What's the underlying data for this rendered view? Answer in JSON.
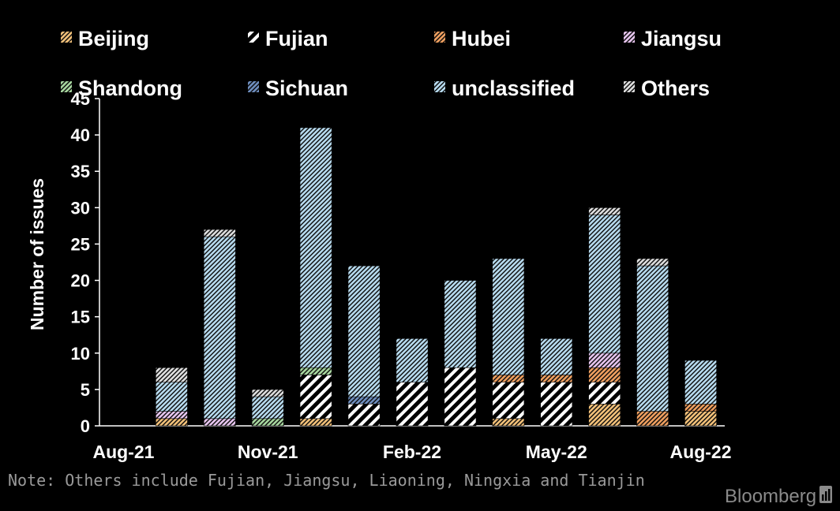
{
  "chart_data": {
    "type": "bar",
    "stacked": true,
    "categories": [
      "Aug-21",
      "Sep-21",
      "Oct-21",
      "Nov-21",
      "Dec-21",
      "Jan-22",
      "Feb-22",
      "Mar-22",
      "Apr-22",
      "May-22",
      "Jun-22",
      "Jul-22",
      "Aug-22"
    ],
    "x_tick_labels": [
      {
        "label": "Aug-21",
        "index": 0
      },
      {
        "label": "Nov-21",
        "index": 3
      },
      {
        "label": "Feb-22",
        "index": 6
      },
      {
        "label": "May-22",
        "index": 9
      },
      {
        "label": "Aug-22",
        "index": 12
      }
    ],
    "series": [
      {
        "name": "Beijing",
        "color": "#f4c27a",
        "pattern": "hatch-right",
        "values": [
          0,
          1,
          0,
          0,
          1,
          0,
          0,
          0,
          1,
          0,
          3,
          0,
          2
        ]
      },
      {
        "name": "Fujian",
        "color": "#ffffff",
        "pattern": "hatch-dense",
        "values": [
          0,
          0,
          0,
          0,
          6,
          3,
          6,
          8,
          5,
          6,
          3,
          0,
          0
        ]
      },
      {
        "name": "Hubei",
        "color": "#f0a060",
        "pattern": "hatch-right",
        "values": [
          0,
          0,
          0,
          0,
          0,
          0,
          0,
          0,
          1,
          1,
          2,
          2,
          1
        ]
      },
      {
        "name": "Jiangsu",
        "color": "#e8c6f0",
        "pattern": "hatch-right",
        "values": [
          0,
          1,
          1,
          0,
          0,
          0,
          0,
          0,
          0,
          0,
          2,
          0,
          0
        ]
      },
      {
        "name": "Shandong",
        "color": "#a8d8a0",
        "pattern": "hatch-right",
        "values": [
          0,
          0,
          0,
          1,
          1,
          0,
          0,
          0,
          0,
          0,
          0,
          0,
          0
        ]
      },
      {
        "name": "Sichuan",
        "color": "#6f8fc0",
        "pattern": "hatch-right",
        "values": [
          0,
          0,
          0,
          0,
          0,
          1,
          0,
          0,
          0,
          0,
          0,
          0,
          0
        ]
      },
      {
        "name": "unclassified",
        "color": "#b8dcf0",
        "pattern": "hatch-right",
        "values": [
          0,
          4,
          25,
          3,
          33,
          18,
          6,
          12,
          16,
          5,
          19,
          20,
          6
        ]
      },
      {
        "name": "Others",
        "color": "#e0e0e0",
        "pattern": "hatch-right",
        "values": [
          0,
          2,
          1,
          1,
          0,
          0,
          0,
          0,
          0,
          0,
          1,
          1,
          0
        ]
      }
    ],
    "totals": [
      0,
      8,
      27,
      5,
      41,
      22,
      12,
      20,
      23,
      12,
      30,
      23,
      9
    ],
    "ylabel": "Number of issues",
    "xlabel": "",
    "ylim": [
      0,
      45
    ],
    "yticks": [
      0,
      5,
      10,
      15,
      20,
      25,
      30,
      35,
      40,
      45
    ],
    "grid": false,
    "legend_placement": "top"
  },
  "note": "Note: Others include Fujian, Jiangsu, Liaoning, Ningxia and Tianjin",
  "brand": "Bloomberg"
}
